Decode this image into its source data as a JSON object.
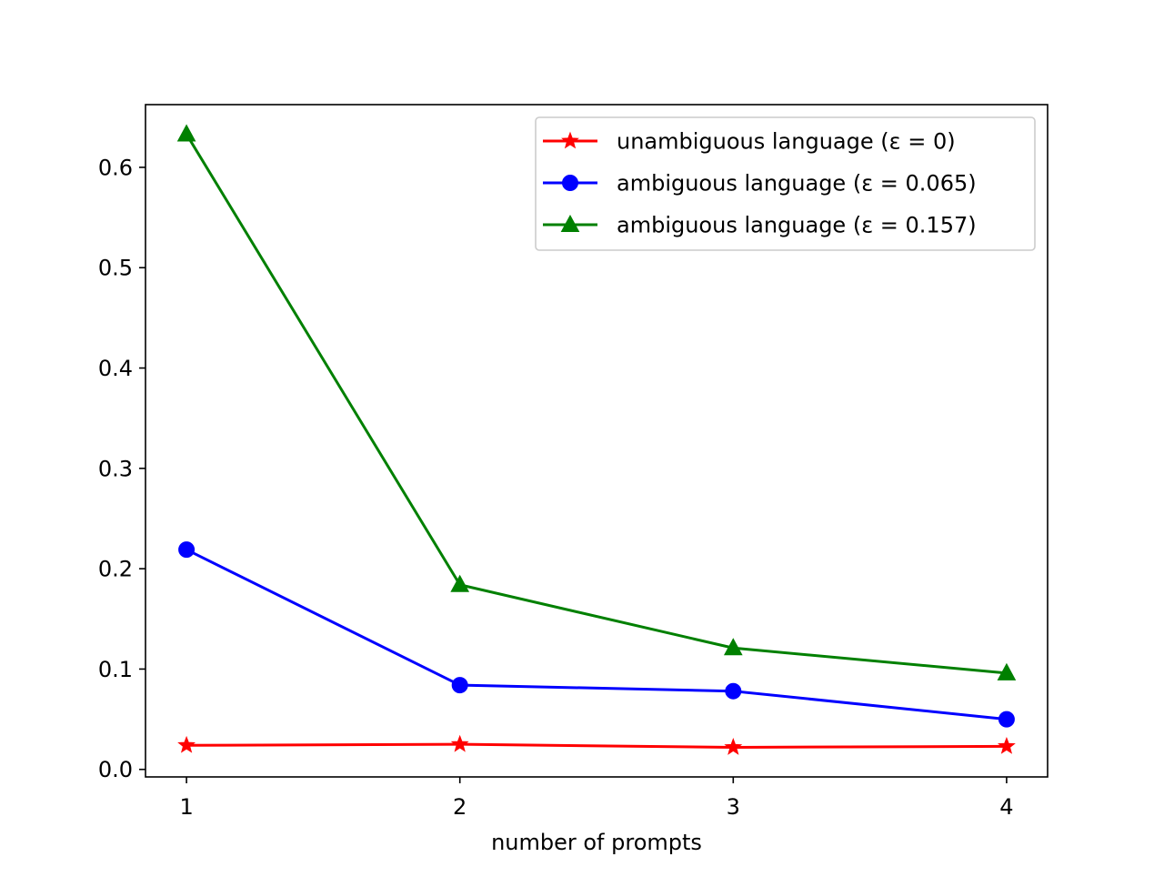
{
  "chart_data": {
    "type": "line",
    "title": "",
    "xlabel": "number of prompts",
    "ylabel": "",
    "x": [
      1,
      2,
      3,
      4
    ],
    "xticks": [
      1,
      2,
      3,
      4
    ],
    "xlim": [
      0.85,
      4.15
    ],
    "yticks": [
      0.0,
      0.1,
      0.2,
      0.3,
      0.4,
      0.5,
      0.6
    ],
    "ytick_labels": [
      "0.0",
      "0.1",
      "0.2",
      "0.3",
      "0.4",
      "0.5",
      "0.6"
    ],
    "ylim": [
      -0.0075,
      0.6625
    ],
    "grid": false,
    "legend_position": "top-right",
    "series": [
      {
        "name": "unambiguous language (ε = 0)",
        "color": "#ff0000",
        "marker": "star",
        "values": [
          0.024,
          0.025,
          0.022,
          0.023
        ]
      },
      {
        "name": "ambiguous language (ε = 0.065)",
        "color": "#0000ff",
        "marker": "circle",
        "values": [
          0.219,
          0.084,
          0.078,
          0.05
        ]
      },
      {
        "name": "ambiguous language (ε = 0.157)",
        "color": "#008000",
        "marker": "triangle",
        "values": [
          0.633,
          0.184,
          0.121,
          0.096
        ]
      }
    ]
  }
}
